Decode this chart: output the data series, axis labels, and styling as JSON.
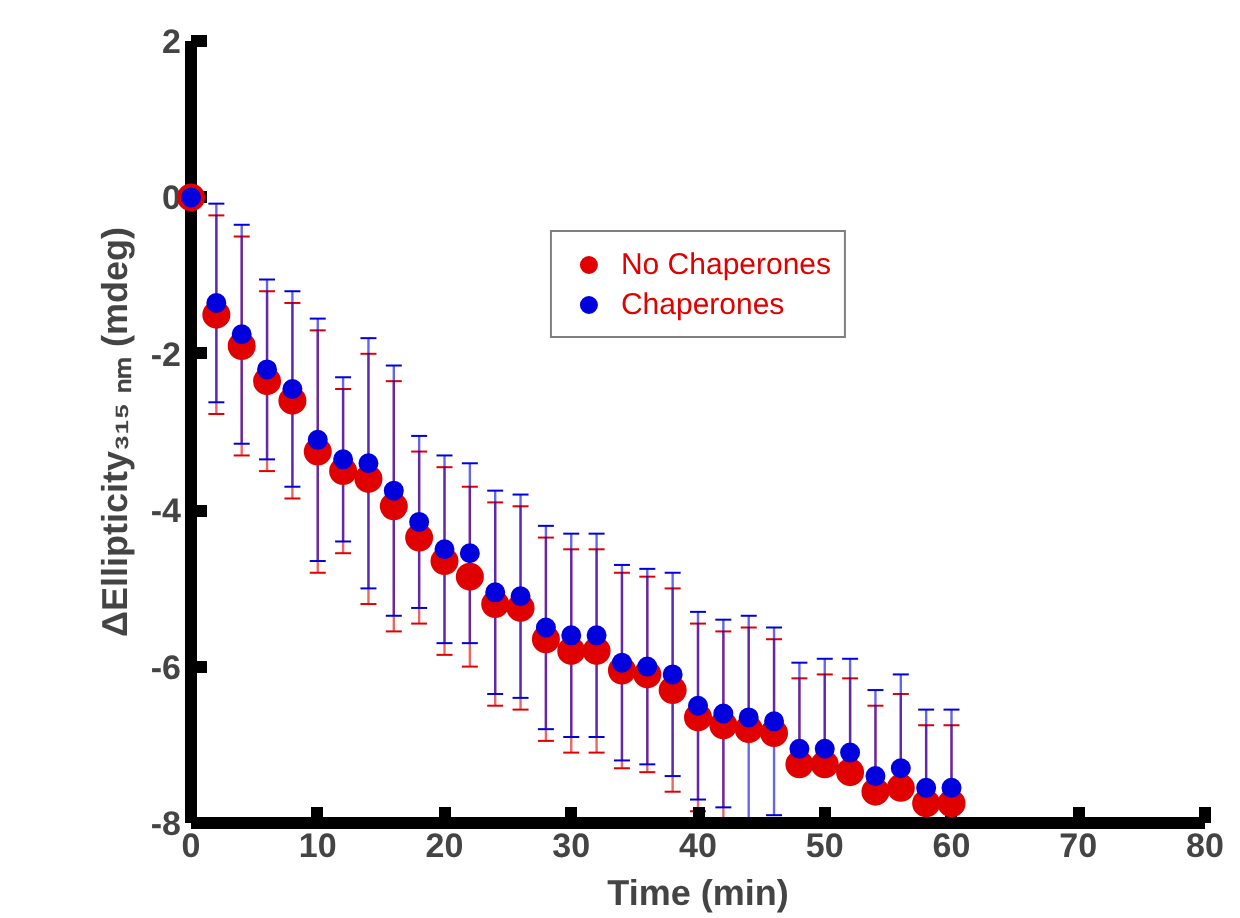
{
  "chart_data": {
    "type": "scatter",
    "xlabel": "Time (min)",
    "ylabel": "ΔEllipticity₃₁₅ ₙₘ (mdeg)",
    "x": [
      0,
      2,
      4,
      6,
      8,
      10,
      12,
      14,
      16,
      18,
      20,
      22,
      24,
      26,
      28,
      30,
      32,
      34,
      36,
      38,
      40,
      42,
      44,
      46,
      48,
      50,
      52,
      54,
      56,
      58,
      60
    ],
    "xlim": [
      0,
      80
    ],
    "xticks": [
      0,
      10,
      20,
      30,
      40,
      50,
      60,
      70,
      80
    ],
    "ylim": [
      -8,
      2
    ],
    "yticks": [
      -8,
      -6,
      -4,
      -2,
      0,
      2
    ],
    "grid": false,
    "legend": "top",
    "marker": "circle",
    "series": [
      {
        "name": "No Chaperones",
        "color": "#e00000",
        "values": [
          0,
          -1.5,
          -1.9,
          -2.35,
          -2.6,
          -3.25,
          -3.5,
          -3.6,
          -3.95,
          -4.35,
          -4.65,
          -4.85,
          -5.2,
          -5.25,
          -5.65,
          -5.8,
          -5.8,
          -6.05,
          -6.1,
          -6.3,
          -6.65,
          -6.75,
          -6.8,
          -6.85,
          -7.25,
          -7.25,
          -7.35,
          -7.6,
          -7.55,
          -7.75,
          -7.75
        ],
        "errors": [
          null,
          1.27,
          1.4,
          1.15,
          1.25,
          1.55,
          1.05,
          1.6,
          1.6,
          1.1,
          1.2,
          1.15,
          1.3,
          1.3,
          1.3,
          1.3,
          1.3,
          1.25,
          1.25,
          1.3,
          1.2,
          1.2,
          [
            -6.8,
            -5.5
          ],
          [
            -6.85,
            -5.65
          ],
          [
            -7.25,
            -6.15
          ],
          [
            -7.25,
            -6.1
          ],
          [
            -7.35,
            -6.15
          ],
          [
            -7.6,
            -6.5
          ],
          [
            -7.55,
            -6.35
          ],
          [
            -8,
            -6.75
          ],
          [
            -8,
            -6.75
          ]
        ]
      },
      {
        "name": "Chaperones",
        "color": "#0000dd",
        "values": [
          0,
          -1.35,
          -1.75,
          -2.2,
          -2.45,
          -3.1,
          -3.35,
          -3.4,
          -3.75,
          -4.15,
          -4.5,
          -4.55,
          -5.05,
          -5.1,
          -5.5,
          -5.6,
          -5.6,
          -5.95,
          -6.0,
          -6.1,
          -6.5,
          -6.6,
          -6.65,
          -6.7,
          -7.05,
          -7.05,
          -7.1,
          -7.4,
          -7.3,
          -7.55,
          -7.55
        ],
        "errors": [
          null,
          1.27,
          1.4,
          1.15,
          1.25,
          1.55,
          1.05,
          1.6,
          1.6,
          1.1,
          1.2,
          1.15,
          1.3,
          1.3,
          1.3,
          1.3,
          1.3,
          1.25,
          1.25,
          1.3,
          1.2,
          1.2,
          1.3,
          1.2,
          [
            -7.05,
            -5.95
          ],
          [
            -7.05,
            -5.9
          ],
          [
            -7.1,
            -5.9
          ],
          [
            -7.4,
            -6.3
          ],
          [
            -7.3,
            -6.1
          ],
          [
            -8,
            -6.55
          ],
          [
            -8,
            -6.55
          ]
        ]
      }
    ]
  }
}
